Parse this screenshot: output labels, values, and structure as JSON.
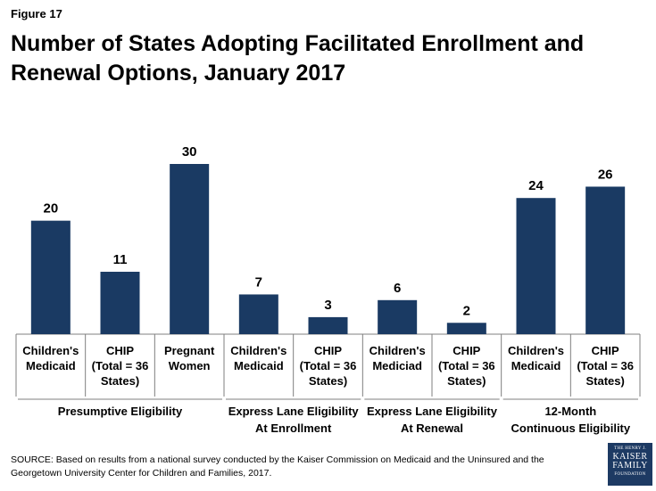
{
  "figure_label": "Figure 17",
  "title": "Number of States Adopting Facilitated Enrollment and Renewal Options, January 2017",
  "colors": {
    "bar": "#1a3a63",
    "axis": "#7f7f7f",
    "text": "#000000"
  },
  "chart_data": {
    "type": "bar",
    "title": "Number of States Adopting Facilitated Enrollment and Renewal Options, January 2017",
    "xlabel": "",
    "ylabel": "",
    "ylim": [
      0,
      30
    ],
    "grid": false,
    "categories": [
      [
        "Children's",
        "Medicaid"
      ],
      [
        "CHIP",
        "(Total = 36",
        "States)"
      ],
      [
        "Pregnant",
        "Women"
      ],
      [
        "Children's",
        "Medicaid"
      ],
      [
        "CHIP",
        "(Total = 36",
        "States)"
      ],
      [
        "Children's",
        "Mediciad"
      ],
      [
        "CHIP",
        "(Total = 36",
        "States)"
      ],
      [
        "Children's",
        "Medicaid"
      ],
      [
        "CHIP",
        "(Total = 36",
        "States)"
      ]
    ],
    "values": [
      20,
      11,
      30,
      7,
      3,
      6,
      2,
      24,
      26
    ],
    "groups": [
      {
        "label": [
          "Presumptive Eligibility"
        ],
        "count": 3
      },
      {
        "label": [
          "Express Lane Eligibility",
          "At Enrollment"
        ],
        "count": 2
      },
      {
        "label": [
          "Express Lane Eligibility",
          "At Renewal"
        ],
        "count": 2
      },
      {
        "label": [
          "12-Month",
          "Continuous  Eligibility"
        ],
        "count": 2
      }
    ]
  },
  "source_note": "SOURCE: Based on results from a national survey conducted by the Kaiser Commission on Medicaid and the Uninsured and the Georgetown University Center for Children and Families, 2017.",
  "logo": {
    "line1": "THE HENRY J.",
    "line2": "KAISER",
    "line3": "FAMILY",
    "line4": "FOUNDATION"
  }
}
